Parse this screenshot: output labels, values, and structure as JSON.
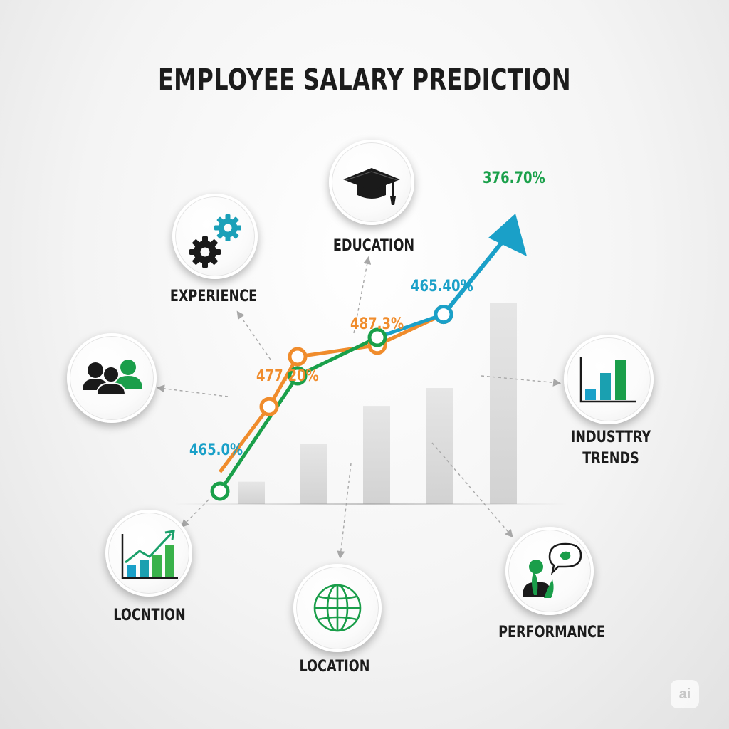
{
  "title": "EMPLOYEE SALARY PREDICTION",
  "colors": {
    "green": "#1aa04a",
    "orange": "#f08c2c",
    "blue": "#1aa0c8",
    "text": "#1c1c1c",
    "bars": "#dcdcdc"
  },
  "nodes": [
    {
      "id": "experience",
      "label": "EXPERIENCE",
      "icon": "gears-icon"
    },
    {
      "id": "education",
      "label": "EDUCATION",
      "icon": "graduation-cap-icon"
    },
    {
      "id": "people",
      "label": "",
      "icon": "people-group-icon"
    },
    {
      "id": "industry",
      "label": "INDUSTTRY\nTRENDS",
      "icon": "bar-chart-icon"
    },
    {
      "id": "location1",
      "label": "LOCNTION",
      "icon": "growth-chart-icon"
    },
    {
      "id": "location2",
      "label": "LOCATION",
      "icon": "globe-icon"
    },
    {
      "id": "performance",
      "label": "PERFORMANCE",
      "icon": "speech-person-icon"
    }
  ],
  "chart_data": {
    "type": "line",
    "title": "",
    "annotations": [
      {
        "text": "376.70%",
        "color": "green"
      },
      {
        "text": "465.40%",
        "color": "blue"
      },
      {
        "text": "487.3%",
        "color": "orange"
      },
      {
        "text": "477.20%",
        "color": "orange"
      },
      {
        "text": "465.0%",
        "color": "blue"
      }
    ],
    "background_bars": [
      10,
      27,
      44,
      52,
      90
    ],
    "series": [
      {
        "color": "green",
        "values": [
          1,
          4,
          5
        ]
      },
      {
        "color": "blue",
        "values": [
          5,
          5.6,
          9.5
        ]
      },
      {
        "color": "orange",
        "values": [
          1.5,
          3.2,
          4.5,
          4.8,
          5.6
        ]
      }
    ]
  },
  "watermark": "ai"
}
